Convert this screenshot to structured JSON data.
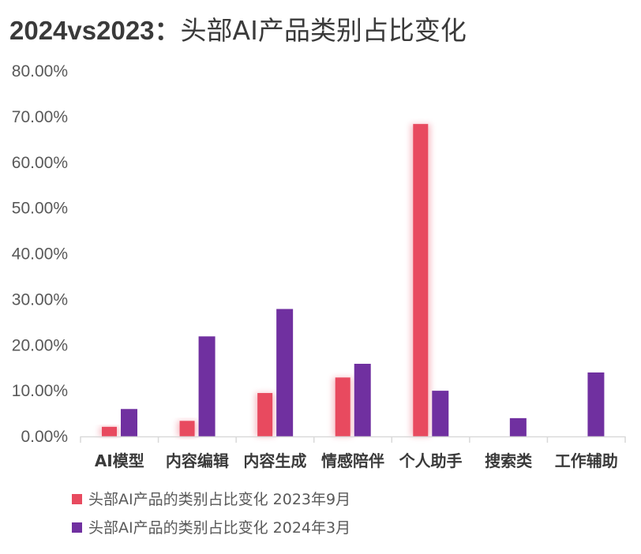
{
  "chart_data": {
    "type": "bar",
    "title_bold": "2024vs2023：",
    "title_rest": "头部AI产品类别占比变化",
    "categories": [
      "AI模型",
      "内容编辑",
      "内容生成",
      "情感陪伴",
      "个人助手",
      "搜索类",
      "工作辅助"
    ],
    "series": [
      {
        "name": "头部AI产品的类别占比变化  2023年9月",
        "color": "#e84a5f",
        "values": [
          2.1,
          3.4,
          9.5,
          12.9,
          68.4,
          null,
          null
        ]
      },
      {
        "name": "头部AI产品的类别占比变化  2024年3月",
        "color": "#7030a0",
        "values": [
          6.0,
          21.9,
          27.9,
          15.9,
          10.0,
          4.0,
          14.0
        ]
      }
    ],
    "yticks": [
      "0.00%",
      "10.00%",
      "20.00%",
      "30.00%",
      "40.00%",
      "50.00%",
      "60.00%",
      "70.00%",
      "80.00%"
    ],
    "ylim": [
      0,
      80
    ],
    "yunit": "%",
    "grid": false,
    "legend": "bottom-left"
  }
}
